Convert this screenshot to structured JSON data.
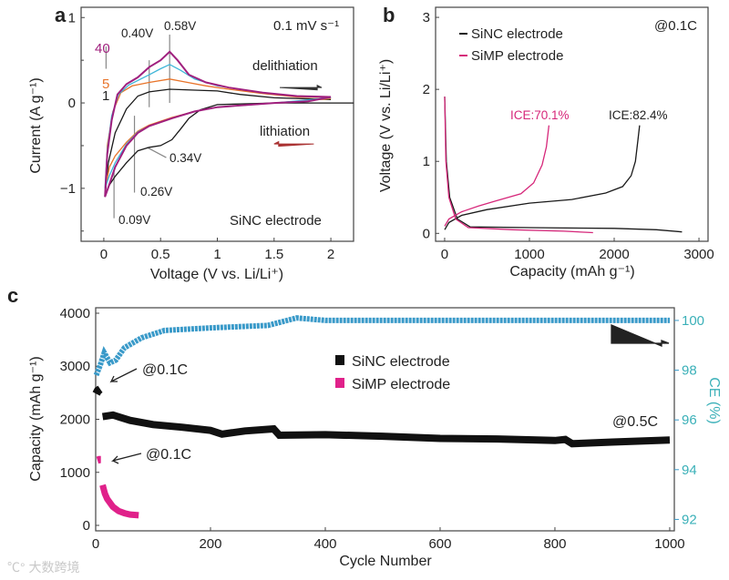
{
  "watermark": "大数跨境",
  "chart_data": [
    {
      "panel": "a",
      "type": "line",
      "xlabel": "Voltage (V vs. Li/Li⁺)",
      "ylabel": "Current (A g⁻¹)",
      "xlim": [
        -0.2,
        2.2
      ],
      "ylim": [
        -1.62,
        1.12
      ],
      "xticks": [
        0,
        0.5,
        1,
        1.5,
        2
      ],
      "xtick_labels": [
        "0",
        "0.5",
        "1",
        "1.5",
        "2"
      ],
      "yticks": [
        1,
        0,
        -1
      ],
      "ytick_labels": [
        "1",
        "0",
        "−1"
      ],
      "minor_yticks": [
        0.5,
        -0.5,
        -1.5
      ],
      "annotations": {
        "scan_rate": "0.1 mV s⁻¹",
        "electrode": "SiNC electrode",
        "delithiation": "delithiation",
        "lithiation": "lithiation",
        "peak_040": "0.40V",
        "peak_058": "0.58V",
        "peak_034": "0.34V",
        "peak_026": "0.26V",
        "peak_009": "0.09V",
        "cycle_40": "40",
        "cycle_5": "5",
        "cycle_1": "1"
      },
      "series": [
        {
          "name": "cycle 1",
          "color": "#1a1a1a",
          "points": [
            [
              2.2,
              0
            ],
            [
              1.5,
              0
            ],
            [
              1.0,
              -0.02
            ],
            [
              0.85,
              -0.08
            ],
            [
              0.75,
              -0.18
            ],
            [
              0.68,
              -0.3
            ],
            [
              0.6,
              -0.43
            ],
            [
              0.5,
              -0.5
            ],
            [
              0.4,
              -0.52
            ],
            [
              0.3,
              -0.56
            ],
            [
              0.2,
              -0.7
            ],
            [
              0.1,
              -0.86
            ],
            [
              0.05,
              -0.96
            ],
            [
              0.01,
              -1.1
            ],
            [
              0.04,
              -0.7
            ],
            [
              0.1,
              -0.35
            ],
            [
              0.2,
              -0.07
            ],
            [
              0.3,
              0.08
            ],
            [
              0.4,
              0.13
            ],
            [
              0.58,
              0.16
            ],
            [
              0.8,
              0.15
            ],
            [
              1.0,
              0.14
            ],
            [
              1.2,
              0.1
            ],
            [
              1.5,
              0.06
            ],
            [
              2.0,
              0.04
            ]
          ]
        },
        {
          "name": "cycle 5",
          "color": "#e8742a",
          "points": [
            [
              2.0,
              0.05
            ],
            [
              1.5,
              0
            ],
            [
              1.0,
              -0.05
            ],
            [
              0.8,
              -0.1
            ],
            [
              0.6,
              -0.17
            ],
            [
              0.4,
              -0.26
            ],
            [
              0.3,
              -0.33
            ],
            [
              0.2,
              -0.46
            ],
            [
              0.1,
              -0.62
            ],
            [
              0.05,
              -0.75
            ],
            [
              0.02,
              -0.95
            ],
            [
              0.03,
              -0.5
            ],
            [
              0.08,
              -0.1
            ],
            [
              0.15,
              0.12
            ],
            [
              0.25,
              0.2
            ],
            [
              0.4,
              0.24
            ],
            [
              0.58,
              0.28
            ],
            [
              0.7,
              0.25
            ],
            [
              0.9,
              0.2
            ],
            [
              1.1,
              0.16
            ],
            [
              1.4,
              0.11
            ],
            [
              1.7,
              0.07
            ],
            [
              2.0,
              0.06
            ]
          ]
        },
        {
          "name": "cycle 20",
          "color": "#3fb6d8",
          "points": [
            [
              2.0,
              0.06
            ],
            [
              1.5,
              0
            ],
            [
              1.0,
              -0.05
            ],
            [
              0.8,
              -0.1
            ],
            [
              0.6,
              -0.18
            ],
            [
              0.4,
              -0.27
            ],
            [
              0.3,
              -0.34
            ],
            [
              0.2,
              -0.48
            ],
            [
              0.1,
              -0.7
            ],
            [
              0.05,
              -0.85
            ],
            [
              0.01,
              -1.0
            ],
            [
              0.03,
              -0.55
            ],
            [
              0.07,
              -0.15
            ],
            [
              0.13,
              0.1
            ],
            [
              0.22,
              0.21
            ],
            [
              0.4,
              0.33
            ],
            [
              0.5,
              0.4
            ],
            [
              0.58,
              0.45
            ],
            [
              0.68,
              0.38
            ],
            [
              0.8,
              0.28
            ],
            [
              1.0,
              0.2
            ],
            [
              1.4,
              0.12
            ],
            [
              1.7,
              0.08
            ],
            [
              2.0,
              0.06
            ]
          ]
        },
        {
          "name": "cycle 40",
          "color": "#a0207e",
          "points": [
            [
              2.0,
              0.07
            ],
            [
              1.8,
              0.02
            ],
            [
              1.5,
              0
            ],
            [
              1.0,
              -0.05
            ],
            [
              0.8,
              -0.1
            ],
            [
              0.6,
              -0.18
            ],
            [
              0.4,
              -0.27
            ],
            [
              0.3,
              -0.35
            ],
            [
              0.2,
              -0.5
            ],
            [
              0.1,
              -0.75
            ],
            [
              0.05,
              -0.95
            ],
            [
              0.01,
              -1.1
            ],
            [
              0.03,
              -0.6
            ],
            [
              0.07,
              -0.2
            ],
            [
              0.12,
              0.1
            ],
            [
              0.2,
              0.22
            ],
            [
              0.3,
              0.3
            ],
            [
              0.4,
              0.42
            ],
            [
              0.5,
              0.5
            ],
            [
              0.58,
              0.6
            ],
            [
              0.65,
              0.5
            ],
            [
              0.75,
              0.33
            ],
            [
              0.9,
              0.24
            ],
            [
              1.1,
              0.18
            ],
            [
              1.4,
              0.12
            ],
            [
              1.7,
              0.08
            ],
            [
              2.0,
              0.07
            ]
          ]
        }
      ]
    },
    {
      "panel": "b",
      "type": "line",
      "xlabel": "Capacity (mAh g⁻¹)",
      "ylabel": "Voltage (V vs. Li/Li⁺)",
      "xlim": [
        -107,
        3107
      ],
      "ylim": [
        -0.11,
        3.14
      ],
      "xticks": [
        0,
        1000,
        2000,
        3000
      ],
      "xtick_labels": [
        "0",
        "1000",
        "2000",
        "3000"
      ],
      "yticks": [
        0,
        1,
        2,
        3
      ],
      "ytick_labels": [
        "0",
        "1",
        "2",
        "3"
      ],
      "annotations": {
        "rate": "@0.1C",
        "ice_simp": "ICE:70.1%",
        "ice_sinc": "ICE:82.4%"
      },
      "legend": [
        "SiNC electrode",
        "SiMP electrode"
      ],
      "legend_placement": "top-left",
      "series": [
        {
          "name": "SiNC electrode",
          "color": "#1a1a1a",
          "discharge": [
            [
              0,
              1.9
            ],
            [
              20,
              1.0
            ],
            [
              60,
              0.5
            ],
            [
              150,
              0.2
            ],
            [
              300,
              0.09
            ],
            [
              1000,
              0.08
            ],
            [
              2000,
              0.07
            ],
            [
              2500,
              0.05
            ],
            [
              2800,
              0.02
            ]
          ],
          "charge": [
            [
              0,
              0.05
            ],
            [
              50,
              0.15
            ],
            [
              200,
              0.25
            ],
            [
              500,
              0.33
            ],
            [
              1000,
              0.42
            ],
            [
              1500,
              0.47
            ],
            [
              1900,
              0.56
            ],
            [
              2100,
              0.65
            ],
            [
              2200,
              0.8
            ],
            [
              2250,
              1.0
            ],
            [
              2280,
              1.3
            ],
            [
              2300,
              1.5
            ]
          ]
        },
        {
          "name": "SiMP electrode",
          "color": "#d6277a",
          "discharge": [
            [
              0,
              1.9
            ],
            [
              15,
              1.0
            ],
            [
              50,
              0.5
            ],
            [
              130,
              0.2
            ],
            [
              280,
              0.08
            ],
            [
              800,
              0.05
            ],
            [
              1400,
              0.03
            ],
            [
              1750,
              0.01
            ]
          ],
          "charge": [
            [
              0,
              0.1
            ],
            [
              50,
              0.2
            ],
            [
              200,
              0.3
            ],
            [
              400,
              0.38
            ],
            [
              600,
              0.45
            ],
            [
              900,
              0.55
            ],
            [
              1050,
              0.7
            ],
            [
              1150,
              0.95
            ],
            [
              1200,
              1.2
            ],
            [
              1230,
              1.5
            ]
          ]
        }
      ]
    },
    {
      "panel": "c",
      "type": "scatter",
      "xlabel": "Cycle Number",
      "ylabel": "Capacity (mAh g⁻¹)",
      "y2label": "CE (%)",
      "xlim": [
        0,
        1008
      ],
      "ylim": [
        -103,
        4103
      ],
      "y2lim": [
        91.54,
        100.51
      ],
      "xticks": [
        0,
        200,
        400,
        600,
        800,
        1000
      ],
      "xtick_labels": [
        "0",
        "200",
        "400",
        "600",
        "800",
        "1000"
      ],
      "yticks": [
        0,
        1000,
        2000,
        3000,
        4000
      ],
      "ytick_labels": [
        "0",
        "1000",
        "2000",
        "3000",
        "4000"
      ],
      "y2ticks": [
        92,
        94,
        96,
        98,
        100
      ],
      "y2tick_labels": [
        "92",
        "94",
        "96",
        "98",
        "100"
      ],
      "y2color": "#3a9ac9",
      "annotations": {
        "sinc_rate": "@0.1C",
        "simp_rate": "@0.1C",
        "cycling_rate": "@0.5C"
      },
      "legend": [
        "SiNC electrode",
        "SiMP electrode"
      ],
      "legend_placement": "center",
      "series": [
        {
          "name": "SiNC electrode",
          "color": "#111111",
          "points": [
            [
              1,
              2480
            ],
            [
              4,
              2540
            ],
            [
              8,
              2570
            ],
            [
              12,
              2050
            ],
            [
              30,
              2080
            ],
            [
              60,
              1980
            ],
            [
              100,
              1900
            ],
            [
              150,
              1850
            ],
            [
              200,
              1790
            ],
            [
              220,
              1720
            ],
            [
              260,
              1780
            ],
            [
              310,
              1820
            ],
            [
              320,
              1700
            ],
            [
              400,
              1710
            ],
            [
              500,
              1680
            ],
            [
              600,
              1640
            ],
            [
              700,
              1630
            ],
            [
              800,
              1600
            ],
            [
              818,
              1620
            ],
            [
              830,
              1540
            ],
            [
              900,
              1570
            ],
            [
              1000,
              1610
            ]
          ]
        },
        {
          "name": "SiMP electrode",
          "color": "#e0218a",
          "points": [
            [
              3,
              1230
            ],
            [
              6,
              1240
            ],
            [
              9,
              1240
            ],
            [
              12,
              760
            ],
            [
              16,
              600
            ],
            [
              20,
              500
            ],
            [
              30,
              350
            ],
            [
              40,
              270
            ],
            [
              50,
              230
            ],
            [
              60,
              205
            ],
            [
              75,
              190
            ]
          ]
        },
        {
          "name": "CE",
          "color": "#3a9ac9",
          "axis": "right",
          "points": [
            [
              1,
              97.8
            ],
            [
              8,
              98.2
            ],
            [
              15,
              98.7
            ],
            [
              25,
              98.3
            ],
            [
              35,
              98.4
            ],
            [
              50,
              98.9
            ],
            [
              80,
              99.3
            ],
            [
              120,
              99.6
            ],
            [
              200,
              99.7
            ],
            [
              300,
              99.8
            ],
            [
              350,
              100.1
            ],
            [
              400,
              100.0
            ],
            [
              600,
              100.0
            ],
            [
              800,
              100.0
            ],
            [
              1000,
              100.0
            ]
          ]
        }
      ]
    }
  ]
}
